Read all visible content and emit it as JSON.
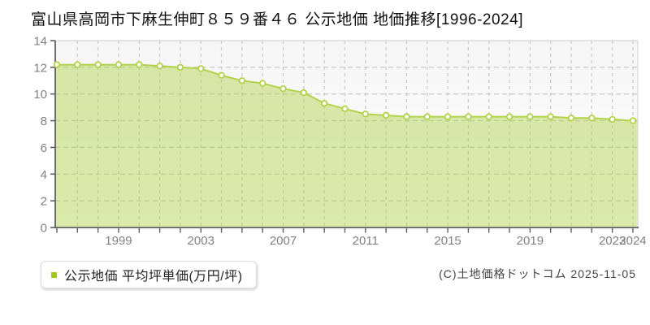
{
  "footer": {
    "copyright": "(C)土地価格ドットコム 2025-11-05"
  },
  "chart_data": {
    "type": "area",
    "title": "富山県高岡市下麻生伸町８５９番４６ 公示地価 地価推移[1996-2024]",
    "legend": "公示地価 平均坪単価(万円/坪)",
    "legend_position": "bottom-left",
    "xlabel": "",
    "ylabel": "",
    "x": [
      1996,
      1997,
      1998,
      1999,
      2000,
      2001,
      2002,
      2003,
      2004,
      2005,
      2006,
      2007,
      2008,
      2009,
      2010,
      2011,
      2012,
      2013,
      2014,
      2015,
      2016,
      2017,
      2018,
      2019,
      2020,
      2021,
      2022,
      2023,
      2024
    ],
    "values": [
      12.2,
      12.2,
      12.2,
      12.2,
      12.2,
      12.1,
      12.0,
      11.9,
      11.4,
      11.0,
      10.8,
      10.4,
      10.1,
      9.3,
      8.9,
      8.5,
      8.4,
      8.3,
      8.3,
      8.3,
      8.3,
      8.3,
      8.3,
      8.3,
      8.3,
      8.2,
      8.2,
      8.1,
      8.0
    ],
    "ylim": [
      0,
      14
    ],
    "yticks": [
      0,
      2,
      4,
      6,
      8,
      10,
      12,
      14
    ],
    "xtick_labels": [
      1999,
      2003,
      2007,
      2011,
      2015,
      2019,
      2023,
      2024
    ],
    "grid": true,
    "colors": {
      "line": "#b3d24b",
      "fill": "#b3d24b",
      "fill_opacity": "0.47",
      "marker_fill": "#ffffff",
      "axis": "#5f5f5f",
      "gridline": "#cccccc",
      "plot_border": "#dcdcdc",
      "tick_label": "#808080",
      "plot_bg_top": "#f5f5f5",
      "plot_bg_bottom": "#ffffff",
      "legend_bullet": "#a0c814"
    }
  }
}
